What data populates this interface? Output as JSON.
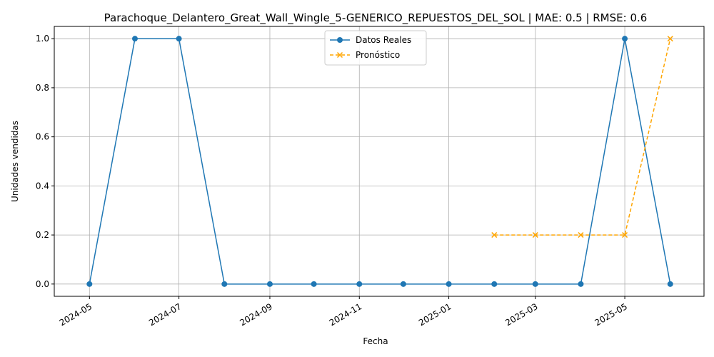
{
  "chart_data": {
    "type": "line",
    "title": "Parachoque_Delantero_Great_Wall_Wingle_5-GENERICO_REPUESTOS_DEL_SOL | MAE: 0.5 | RMSE: 0.6",
    "xlabel": "Fecha",
    "ylabel": "Unidades vendidas",
    "xlim": [
      "2024-04-07",
      "2025-06-24"
    ],
    "ylim": [
      -0.05,
      1.05
    ],
    "x_ticks": [
      "2024-05",
      "2024-07",
      "2024-09",
      "2024-11",
      "2025-01",
      "2025-03",
      "2025-05"
    ],
    "y_ticks": [
      "0.0",
      "0.2",
      "0.4",
      "0.6",
      "0.8",
      "1.0"
    ],
    "grid": true,
    "legend_position": "top-center",
    "series": [
      {
        "name": "Datos Reales",
        "color": "#1f77b4",
        "marker": "circle",
        "line_style": "solid",
        "x": [
          "2024-05-01",
          "2024-06-01",
          "2024-07-01",
          "2024-08-01",
          "2024-09-01",
          "2024-10-01",
          "2024-11-01",
          "2024-12-01",
          "2025-01-01",
          "2025-02-01",
          "2025-03-01",
          "2025-04-01",
          "2025-05-01",
          "2025-06-01"
        ],
        "values": [
          0,
          1,
          1,
          0,
          0,
          0,
          0,
          0,
          0,
          0,
          0,
          0,
          1,
          0
        ]
      },
      {
        "name": "Pronóstico",
        "color": "#ffa500",
        "marker": "x",
        "line_style": "dashed",
        "x": [
          "2025-02-01",
          "2025-03-01",
          "2025-04-01",
          "2025-05-01",
          "2025-06-01"
        ],
        "values": [
          0.2,
          0.2,
          0.2,
          0.2,
          1.0
        ]
      }
    ]
  }
}
